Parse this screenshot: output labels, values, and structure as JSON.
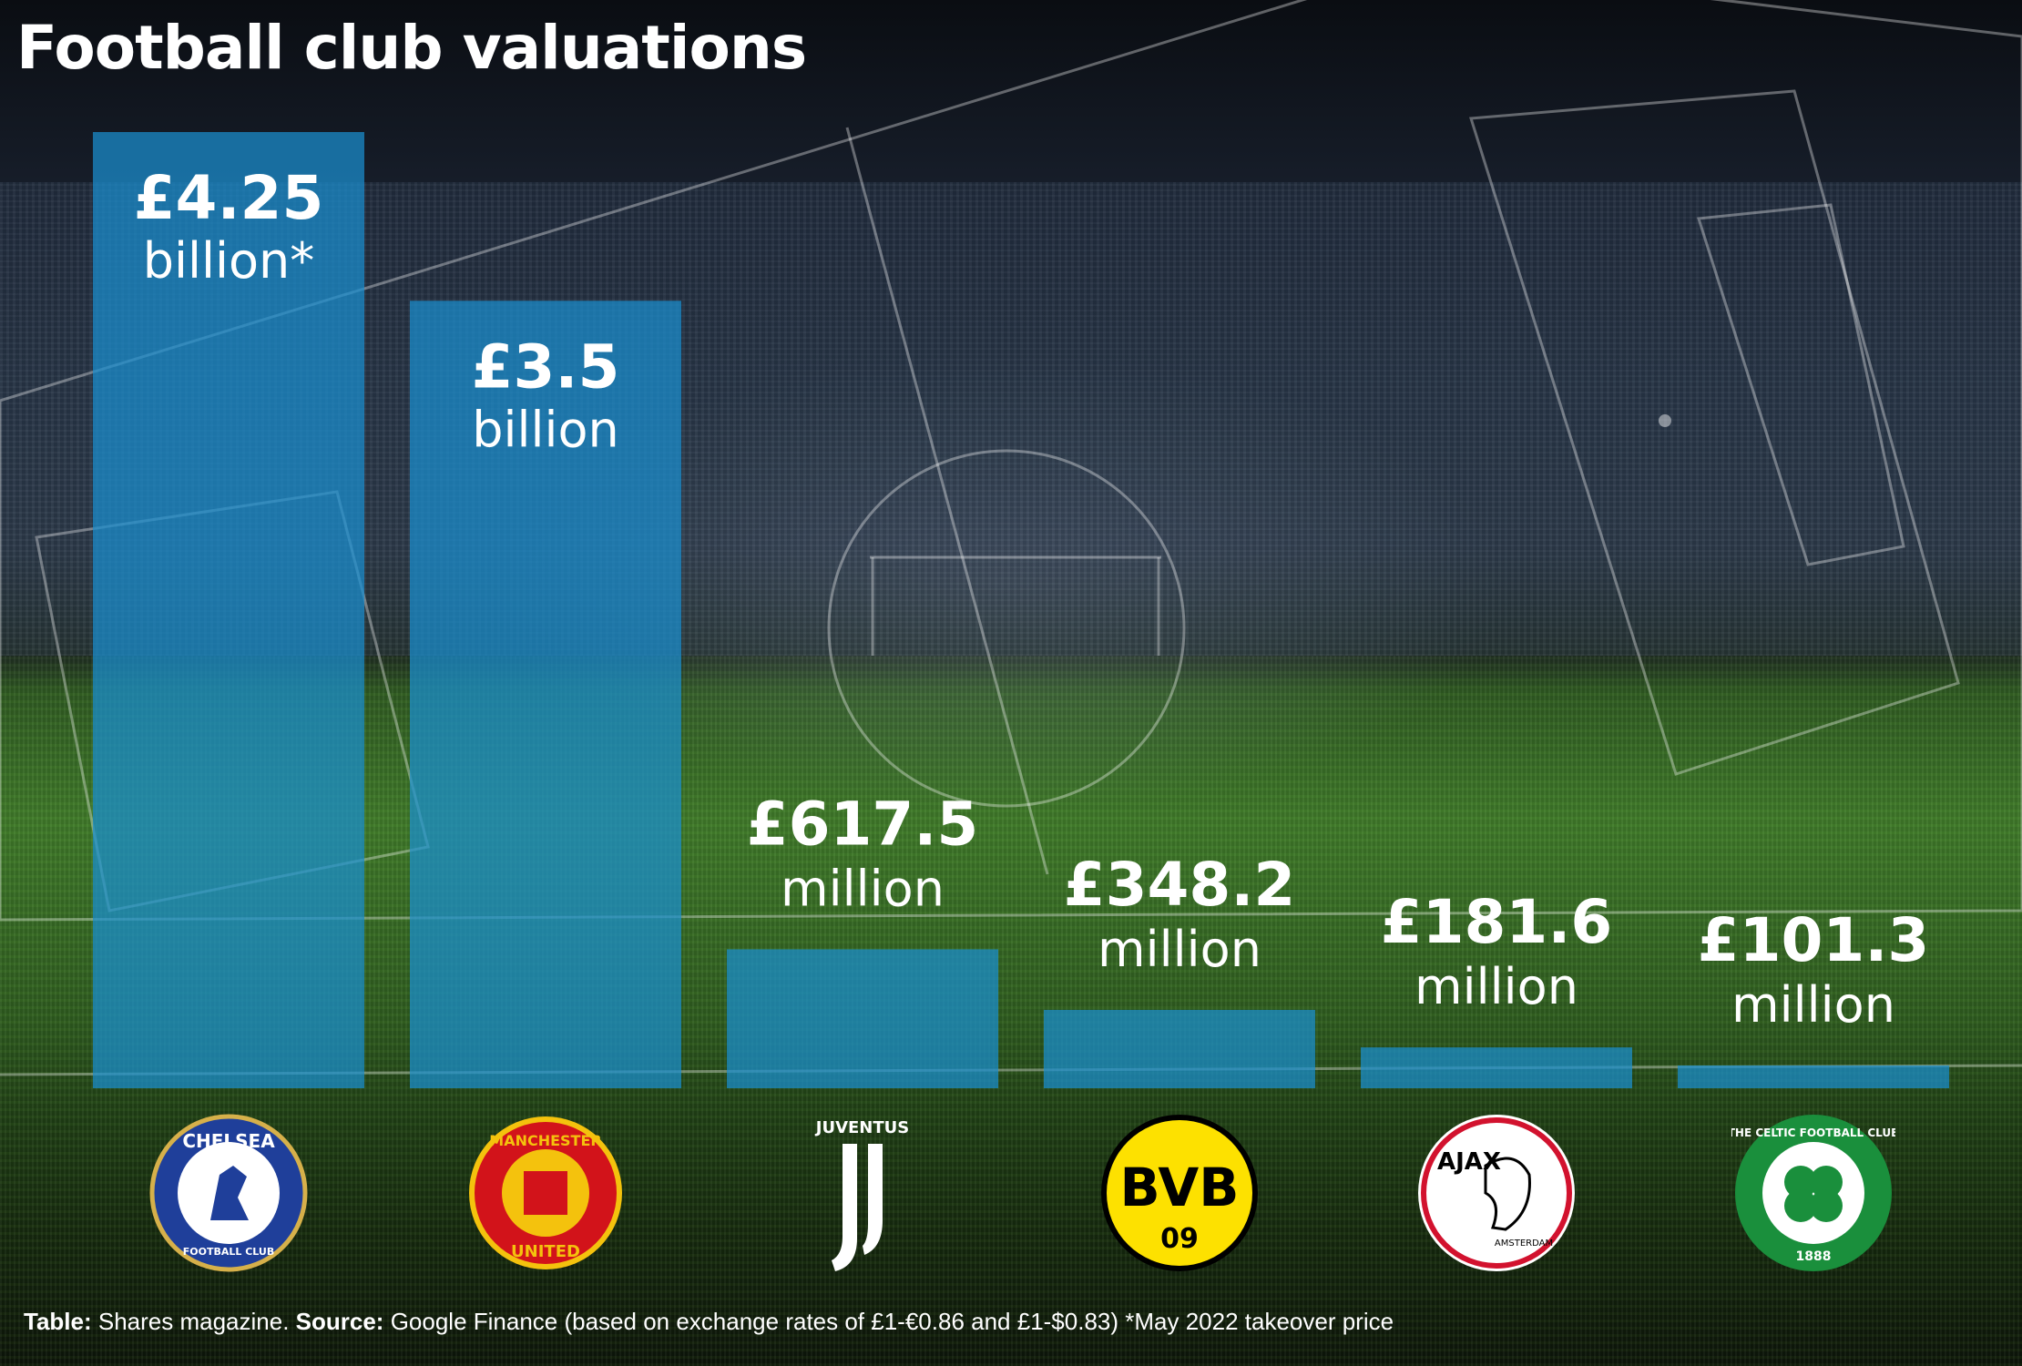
{
  "title": "Football club valuations",
  "colors": {
    "bar": "#1a8fd0",
    "text": "#ffffff"
  },
  "chart_data": {
    "type": "bar",
    "title": "Football club valuations",
    "categories": [
      "Chelsea",
      "Manchester United",
      "Juventus",
      "Borussia Dortmund",
      "Ajax",
      "Celtic"
    ],
    "values_gbp_millions": [
      4250,
      3500,
      617.5,
      348.2,
      181.6,
      101.3
    ],
    "labels": [
      {
        "value": "£4.25",
        "unit": "billion*"
      },
      {
        "value": "£3.5",
        "unit": "billion"
      },
      {
        "value": "£617.5",
        "unit": "million"
      },
      {
        "value": "£348.2",
        "unit": "million"
      },
      {
        "value": "£181.6",
        "unit": "million"
      },
      {
        "value": "£101.3",
        "unit": "million"
      }
    ],
    "logo_text": [
      {
        "top": "CHELSEA",
        "bottom": "FOOTBALL CLUB"
      },
      {
        "top": "MANCHESTER",
        "bottom": "UNITED"
      },
      {
        "top": "JUVENTUS",
        "bottom": ""
      },
      {
        "top": "BVB",
        "bottom": "09"
      },
      {
        "top": "AJAX",
        "bottom": "AMSTERDAM"
      },
      {
        "top": "THE CELTIC FOOTBALL CLUB",
        "bottom": "1888"
      }
    ]
  },
  "footer": {
    "table_label": "Table:",
    "table_text": " Shares magazine. ",
    "source_label": "Source:",
    "source_text": " Google Finance (based on exchange rates of £1-€0.86 and £1-$0.83) *May 2022 takeover price"
  }
}
